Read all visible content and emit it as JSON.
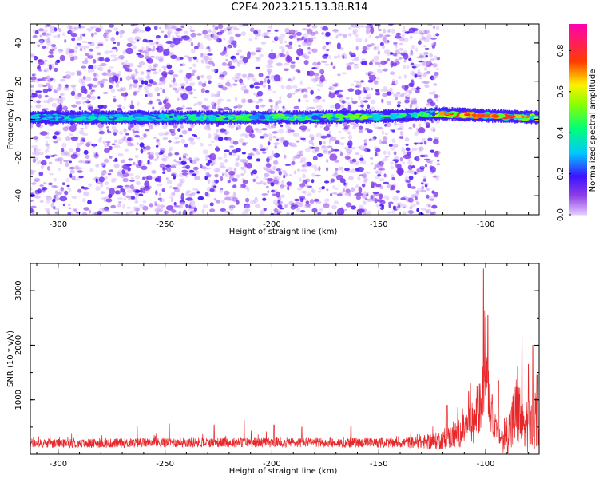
{
  "figure": {
    "title": "C2E4.2023.215.13.38.R14"
  },
  "chart_data": [
    {
      "type": "heatmap",
      "xlabel": "Height of straight line (km)",
      "ylabel": "Frequency (Hz)",
      "xlim": [
        -313,
        -75
      ],
      "ylim": [
        -50,
        50
      ],
      "xticks": [
        -300,
        -250,
        -200,
        -150,
        -100
      ],
      "yticks": [
        -40,
        -20,
        0,
        20,
        40
      ],
      "grid": false,
      "colorbar": {
        "label": "Normalized spectral amplitude",
        "range": [
          0,
          0.93
        ],
        "ticks": [
          "0.0",
          "0.2",
          "0.4",
          "0.6",
          "0.8"
        ],
        "tick_values": [
          0,
          0.2,
          0.4,
          0.6,
          0.8
        ],
        "colormap": "purple-blue-cyan-green-yellow-red-magenta"
      },
      "band": {
        "center_freq_hz": [
          [
            -313,
            1.0
          ],
          [
            -250,
            1.0
          ],
          [
            -200,
            1.0
          ],
          [
            -150,
            1.5
          ],
          [
            -120,
            3.0
          ],
          [
            -100,
            2.0
          ],
          [
            -75,
            1.0
          ]
        ],
        "half_width_hz": 3,
        "peak_amplitude": [
          [
            -313,
            0.4
          ],
          [
            -250,
            0.45
          ],
          [
            -220,
            0.55
          ],
          [
            -175,
            0.6
          ],
          [
            -130,
            0.55
          ],
          [
            -115,
            0.85
          ],
          [
            -100,
            0.9
          ],
          [
            -85,
            0.85
          ],
          [
            -75,
            0.75
          ]
        ]
      },
      "background_noise": {
        "x_range": [
          -313,
          -122
        ],
        "amplitude_range": [
          0.02,
          0.2
        ]
      }
    },
    {
      "type": "line",
      "xlabel": "Height of straight line (km)",
      "ylabel": "SNR (10 * v/v)",
      "xlim": [
        -313,
        -75
      ],
      "ylim": [
        0,
        3500
      ],
      "xticks": [
        -300,
        -250,
        -200,
        -150,
        -100
      ],
      "yticks": [
        1000,
        2000,
        3000
      ],
      "grid": false,
      "series": [
        {
          "color": "#e8272a",
          "envelope_x": [
            -313,
            -280,
            -260,
            -240,
            -220,
            -200,
            -180,
            -160,
            -140,
            -130,
            -120,
            -115,
            -110,
            -105,
            -102,
            -100,
            -98,
            -95,
            -92,
            -88,
            -85,
            -82,
            -80,
            -78,
            -75
          ],
          "baseline": [
            200,
            200,
            210,
            215,
            215,
            215,
            210,
            210,
            210,
            220,
            260,
            330,
            450,
            620,
            900,
            1800,
            900,
            380,
            280,
            500,
            850,
            420,
            620,
            420,
            700
          ],
          "spread": [
            110,
            110,
            120,
            120,
            120,
            120,
            120,
            120,
            120,
            160,
            230,
            320,
            400,
            550,
            700,
            1000,
            600,
            350,
            330,
            700,
            1000,
            600,
            800,
            600,
            700
          ],
          "peaks": [
            [
              -263,
              520
            ],
            [
              -248,
              560
            ],
            [
              -227,
              540
            ],
            [
              -213,
              630
            ],
            [
              -199,
              540
            ],
            [
              -186,
              500
            ],
            [
              -163,
              520
            ],
            [
              -135,
              420
            ],
            [
              -118,
              900
            ],
            [
              -113,
              860
            ],
            [
              -108,
              1150
            ],
            [
              -104,
              1250
            ],
            [
              -101,
              3400
            ],
            [
              -99,
              2550
            ],
            [
              -94,
              1350
            ],
            [
              -85,
              1600
            ],
            [
              -83,
              2200
            ],
            [
              -80,
              1650
            ],
            [
              -78,
              2000
            ],
            [
              -76,
              1450
            ]
          ]
        }
      ]
    }
  ]
}
